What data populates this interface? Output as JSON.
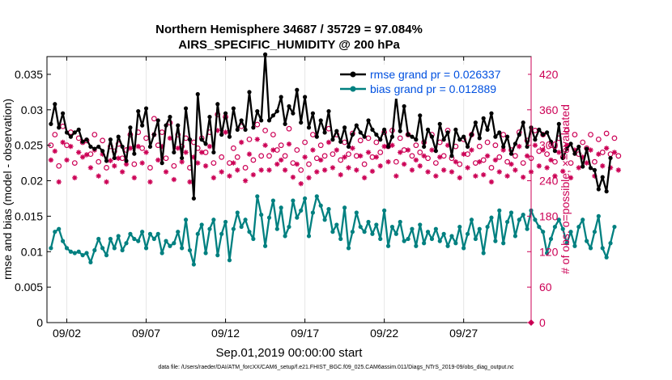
{
  "chart_data": {
    "type": "line",
    "title_line1": "Northern Hemisphere 34687 / 35729 = 97.084%",
    "title_line2": "AIRS_SPECIFIC_HUMIDITY @ 200 hPa",
    "xlabel": "Sep.01,2019 00:00:00 start",
    "ylabel_left": "rmse and bias (model - observation)",
    "ylabel_right": "# of obs: o=possible; ×=evaluated",
    "footer": "data file: /Users/raeder/DAI/ATM_forcXX/CAM6_setup/f.e21.FHIST_BGC.f09_025.CAM6assim.011/Diags_NTrS_2019-09/obs_diag_output.nc",
    "x_ticks": [
      {
        "day": 2,
        "label": "09/02"
      },
      {
        "day": 7,
        "label": "09/07"
      },
      {
        "day": 12,
        "label": "09/12"
      },
      {
        "day": 17,
        "label": "09/17"
      },
      {
        "day": 22,
        "label": "09/22"
      },
      {
        "day": 27,
        "label": "09/27"
      }
    ],
    "xlim": [
      0.75,
      31.25
    ],
    "ylim_left": [
      0,
      0.0375
    ],
    "y_ticks_left": [
      {
        "value": 0,
        "label": "0"
      },
      {
        "value": 0.005,
        "label": "0.005"
      },
      {
        "value": 0.01,
        "label": "0.01"
      },
      {
        "value": 0.015,
        "label": "0.015"
      },
      {
        "value": 0.02,
        "label": "0.02"
      },
      {
        "value": 0.025,
        "label": "0.025"
      },
      {
        "value": 0.03,
        "label": "0.03"
      },
      {
        "value": 0.035,
        "label": "0.035"
      }
    ],
    "ylim_right": [
      0,
      450
    ],
    "y_ticks_right": [
      {
        "value": 0,
        "label": "0"
      },
      {
        "value": 60,
        "label": "60"
      },
      {
        "value": 120,
        "label": "120"
      },
      {
        "value": 180,
        "label": "180"
      },
      {
        "value": 240,
        "label": "240"
      },
      {
        "value": 300,
        "label": "300"
      },
      {
        "value": 360,
        "label": "360"
      },
      {
        "value": 420,
        "label": "420"
      }
    ],
    "time_start_day": 1.0,
    "time_step_day": 0.25,
    "series": [
      {
        "name": "rmse",
        "legend": "rmse grand pr = 0.026337",
        "color": "#000000",
        "values": [
          0.028,
          0.0308,
          0.0275,
          0.0295,
          0.0268,
          0.0262,
          0.0268,
          0.0272,
          0.0255,
          0.0258,
          0.0248,
          0.0245,
          0.0248,
          0.0242,
          0.0228,
          0.0258,
          0.0232,
          0.0262,
          0.0248,
          0.0228,
          0.0275,
          0.0238,
          0.0298,
          0.0278,
          0.0302,
          0.0248,
          0.0265,
          0.0285,
          0.0225,
          0.0278,
          0.029,
          0.024,
          0.0278,
          0.0232,
          0.0302,
          0.0258,
          0.0175,
          0.0322,
          0.0258,
          0.0252,
          0.029,
          0.024,
          0.0308,
          0.0265,
          0.0295,
          0.0262,
          0.0302,
          0.0272,
          0.0285,
          0.0272,
          0.0325,
          0.0275,
          0.0298,
          0.0285,
          0.0378,
          0.0285,
          0.0292,
          0.0298,
          0.0318,
          0.028,
          0.0305,
          0.0295,
          0.0328,
          0.0282,
          0.0318,
          0.0275,
          0.0295,
          0.0262,
          0.0285,
          0.0268,
          0.0298,
          0.0258,
          0.027,
          0.0255,
          0.0275,
          0.0248,
          0.0265,
          0.0278,
          0.0268,
          0.0262,
          0.0285,
          0.0272,
          0.0265,
          0.0258,
          0.0272,
          0.0248,
          0.0262,
          0.0318,
          0.027,
          0.0305,
          0.0265,
          0.0262,
          0.0258,
          0.0292,
          0.0248,
          0.0272,
          0.0262,
          0.0242,
          0.028,
          0.0258,
          0.0268,
          0.0235,
          0.0272,
          0.0258,
          0.0262,
          0.0248,
          0.0265,
          0.0282,
          0.026,
          0.0288,
          0.0272,
          0.0295,
          0.0262,
          0.0268,
          0.0248,
          0.0262,
          0.0238,
          0.0252,
          0.0265,
          0.0282,
          0.0248,
          0.0275,
          0.0258,
          0.0272,
          0.0265,
          0.0268,
          0.0255,
          0.0242,
          0.028,
          0.0232,
          0.0245,
          0.0252,
          0.0238,
          0.0248,
          0.022,
          0.0245,
          0.0218,
          0.0215,
          0.0188,
          0.0205,
          0.0185,
          0.0232
        ]
      },
      {
        "name": "bias",
        "legend": "bias grand pr = 0.012889",
        "color": "#008080",
        "values": [
          0.0105,
          0.0128,
          0.0132,
          0.0115,
          0.0105,
          0.01,
          0.0098,
          0.01,
          0.0095,
          0.0098,
          0.0085,
          0.0102,
          0.0118,
          0.0105,
          0.0095,
          0.0118,
          0.0105,
          0.0122,
          0.0102,
          0.0112,
          0.0125,
          0.0118,
          0.0115,
          0.0128,
          0.0105,
          0.0125,
          0.0118,
          0.0125,
          0.0098,
          0.0115,
          0.0108,
          0.0112,
          0.0128,
          0.0105,
          0.0145,
          0.0102,
          0.0082,
          0.0125,
          0.0138,
          0.0098,
          0.0132,
          0.0145,
          0.0095,
          0.0125,
          0.0142,
          0.0088,
          0.0132,
          0.0155,
          0.0135,
          0.0145,
          0.0128,
          0.0118,
          0.0178,
          0.0152,
          0.0108,
          0.0148,
          0.0172,
          0.0132,
          0.0162,
          0.0122,
          0.0135,
          0.0172,
          0.0148,
          0.0158,
          0.0175,
          0.0122,
          0.0155,
          0.0178,
          0.0165,
          0.0145,
          0.016,
          0.0128,
          0.0138,
          0.0118,
          0.0162,
          0.0105,
          0.0128,
          0.0155,
          0.0135,
          0.0128,
          0.0142,
          0.0125,
          0.0138,
          0.0118,
          0.0158,
          0.0108,
          0.0135,
          0.0125,
          0.0142,
          0.0115,
          0.0118,
          0.0132,
          0.0108,
          0.0138,
          0.0112,
          0.0128,
          0.0118,
          0.0132,
          0.0115,
          0.0125,
          0.0108,
          0.0122,
          0.0112,
          0.0135,
          0.0105,
          0.0125,
          0.0145,
          0.0118,
          0.0132,
          0.0098,
          0.0135,
          0.0148,
          0.0115,
          0.0158,
          0.0112,
          0.0142,
          0.0155,
          0.0122,
          0.0145,
          0.0152,
          0.0132,
          0.0158,
          0.0145,
          0.0135,
          0.0128,
          0.0098,
          0.0118,
          0.0135,
          0.0145,
          0.0132,
          0.0112,
          0.0128,
          0.0108,
          0.0135,
          0.0145,
          0.0115,
          0.0105,
          0.0128,
          0.015,
          0.0105,
          0.0092,
          0.0112,
          0.0135
        ]
      }
    ],
    "obs_possible": [
      300,
      318,
      265,
      332,
      300,
      322,
      270,
      312,
      305,
      308,
      285,
      318,
      272,
      308,
      262,
      298,
      290,
      302,
      278,
      292,
      318,
      268,
      322,
      295,
      312,
      262,
      345,
      300,
      322,
      278,
      338,
      265,
      318,
      298,
      312,
      262,
      305,
      295,
      312,
      288,
      322,
      270,
      352,
      280,
      348,
      270,
      295,
      280,
      332,
      262,
      310,
      275,
      335,
      282,
      325,
      282,
      318,
      292,
      300,
      282,
      328,
      270,
      292,
      258,
      305,
      268,
      318,
      278,
      300,
      282,
      328,
      285,
      318,
      275,
      305,
      285,
      320,
      282,
      308,
      268,
      312,
      280,
      305,
      288,
      322,
      298,
      325,
      272,
      312,
      292,
      318,
      282,
      300,
      288,
      305,
      278,
      318,
      270,
      305,
      282,
      325,
      278,
      298,
      268,
      310,
      285,
      318,
      270,
      298,
      275,
      305,
      262,
      300,
      280,
      318,
      272,
      292,
      282,
      322,
      270,
      308,
      278,
      325,
      290,
      318,
      285,
      300,
      272,
      312,
      280,
      325,
      270,
      318,
      285,
      305,
      295,
      318,
      272,
      310,
      288,
      320,
      285,
      312,
      282
    ],
    "obs_evaluated": [
      275,
      290,
      238,
      305,
      275,
      298,
      245,
      288,
      280,
      284,
      262,
      292,
      248,
      285,
      238,
      274,
      265,
      278,
      255,
      268,
      295,
      245,
      298,
      270,
      288,
      238,
      318,
      275,
      298,
      255,
      312,
      242,
      295,
      272,
      288,
      238,
      280,
      270,
      288,
      265,
      298,
      245,
      325,
      255,
      322,
      248,
      270,
      258,
      305,
      240,
      285,
      250,
      310,
      258,
      300,
      258,
      292,
      268,
      275,
      258,
      302,
      246,
      268,
      235,
      280,
      245,
      292,
      255,
      275,
      258,
      305,
      262,
      292,
      250,
      280,
      262,
      295,
      258,
      282,
      245,
      288,
      256,
      280,
      265,
      298,
      272,
      300,
      248,
      288,
      268,
      292,
      258,
      275,
      265,
      282,
      255,
      292,
      248,
      280,
      258,
      300,
      255,
      272,
      245,
      285,
      262,
      292,
      248,
      272,
      250,
      282,
      238,
      275,
      255,
      292,
      248,
      268,
      258,
      298,
      246,
      282,
      255,
      300,
      265,
      292,
      262,
      275,
      248,
      288,
      256,
      300,
      245,
      292,
      262,
      280,
      270,
      292,
      248,
      285,
      265,
      295,
      262,
      288,
      258
    ],
    "obs_color": "#CC0055"
  }
}
